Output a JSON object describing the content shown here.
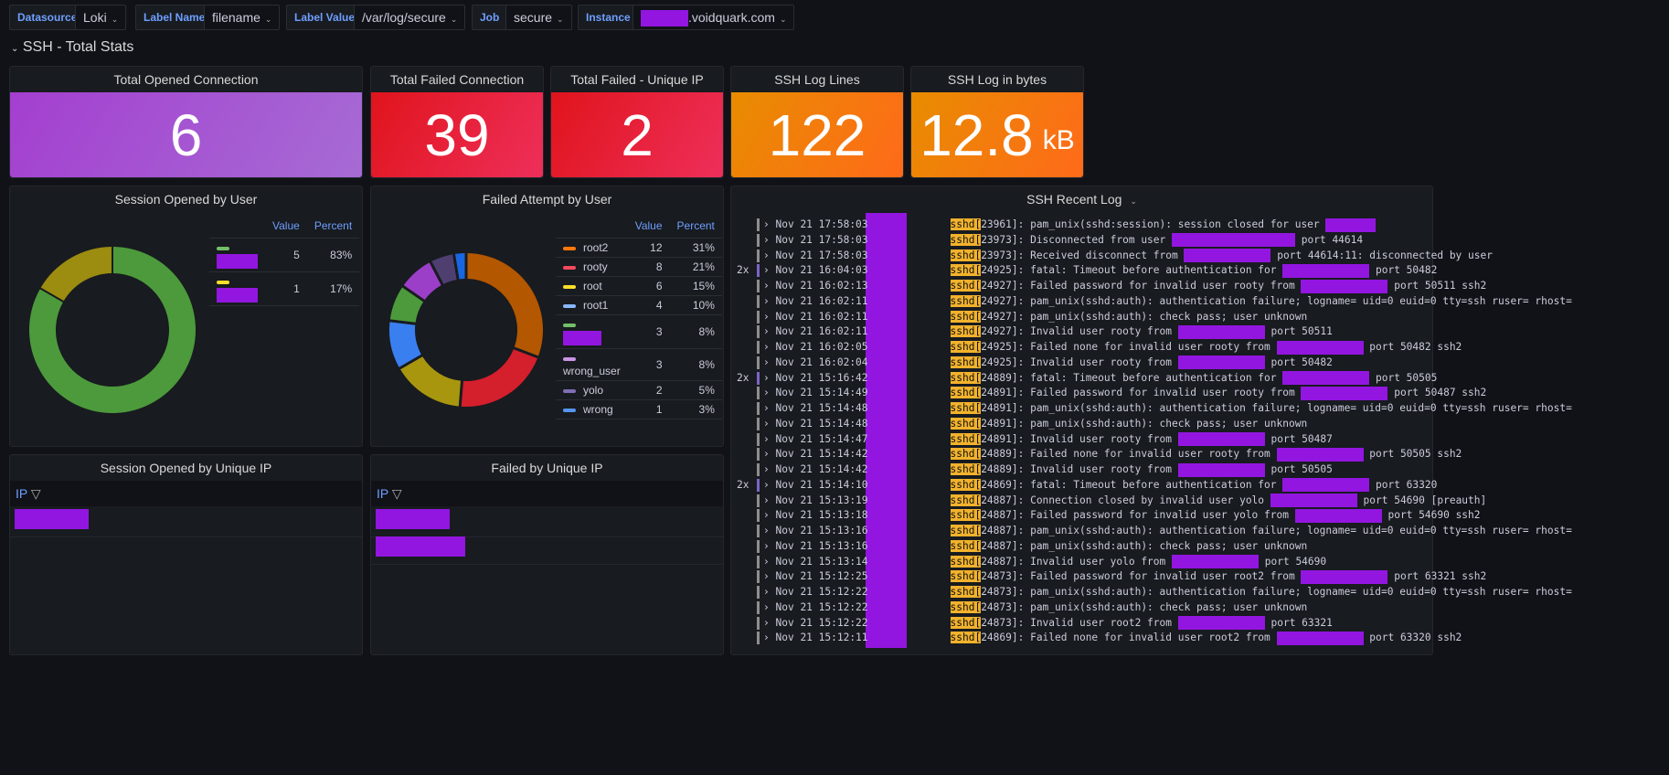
{
  "variables": [
    {
      "label": "Datasource",
      "value": "Loki"
    },
    {
      "label": "Label Name",
      "value": "filename"
    },
    {
      "label": "Label Value",
      "value": "/var/log/secure"
    },
    {
      "label": "Job",
      "value": "secure"
    },
    {
      "label": "Instance",
      "value": ".voidquark.com"
    }
  ],
  "row_title": "SSH - Total Stats",
  "stats": [
    {
      "title": "Total Opened Connection",
      "value": "6",
      "unit": "",
      "color": "#a352cc"
    },
    {
      "title": "Total Failed Connection",
      "value": "39",
      "unit": "",
      "color": "#e02f44"
    },
    {
      "title": "Total Failed - Unique IP",
      "value": "2",
      "unit": "",
      "color": "#e02f44"
    },
    {
      "title": "SSH Log Lines",
      "value": "122",
      "unit": "",
      "color": "#ff780a"
    },
    {
      "title": "SSH Log in bytes",
      "value": "12.8",
      "unit": "kB",
      "color": "#ff780a"
    }
  ],
  "session_by_user": {
    "title": "Session Opened by User",
    "value_header": "Value",
    "percent_header": "Percent",
    "items": [
      {
        "name": "",
        "redacted": true,
        "value": 5,
        "percent": "83%",
        "color": "#73bf69",
        "arc": "#4c9a3c"
      },
      {
        "name": "",
        "redacted": true,
        "value": 1,
        "percent": "17%",
        "color": "#fade2a",
        "arc": "#9c8c10"
      }
    ]
  },
  "failed_by_user": {
    "title": "Failed Attempt by User",
    "value_header": "Value",
    "percent_header": "Percent",
    "items": [
      {
        "name": "root2",
        "value": 12,
        "percent": "31%",
        "color": "#ff780a",
        "arc": "#b35700"
      },
      {
        "name": "rooty",
        "value": 8,
        "percent": "21%",
        "color": "#f2495c",
        "arc": "#d41f2c"
      },
      {
        "name": "root",
        "value": 6,
        "percent": "15%",
        "color": "#fade2a",
        "arc": "#a8960e"
      },
      {
        "name": "root1",
        "value": 4,
        "percent": "10%",
        "color": "#8ab8ff",
        "arc": "#3a7ff0"
      },
      {
        "name": "",
        "redacted": true,
        "value": 3,
        "percent": "8%",
        "color": "#73bf69",
        "arc": "#4c9a3c"
      },
      {
        "name": "wrong_user",
        "value": 3,
        "percent": "8%",
        "color": "#ca95e5",
        "arc": "#9b3fc8"
      },
      {
        "name": "yolo",
        "value": 2,
        "percent": "5%",
        "color": "#806eb7",
        "arc": "#4e3f70"
      },
      {
        "name": "wrong",
        "value": 1,
        "percent": "3%",
        "color": "#5794f2",
        "arc": "#1a66e0"
      }
    ]
  },
  "session_by_ip": {
    "title": "Session Opened by Unique IP",
    "column": "IP",
    "rows": 1
  },
  "failed_by_ip": {
    "title": "Failed by Unique IP",
    "column": "IP",
    "rows": 2
  },
  "log": {
    "title": "SSH Recent Log",
    "app": "sshd[",
    "lines": [
      {
        "dup": "",
        "ts": "Nov 21 17:58:03",
        "pid": "23961",
        "msg": "]: pam_unix(sshd:session): session closed for user",
        "after": ""
      },
      {
        "dup": "",
        "ts": "Nov 21 17:58:03",
        "pid": "23973",
        "msg": "]: Disconnected from user",
        "after": "port 44614"
      },
      {
        "dup": "",
        "ts": "Nov 21 17:58:03",
        "pid": "23973",
        "msg": "]: Received disconnect from",
        "after": "port 44614:11: disconnected by user"
      },
      {
        "dup": "2x",
        "ts": "Nov 21 16:04:03",
        "pid": "24925",
        "msg": "]: fatal: Timeout before authentication for",
        "after": "port 50482"
      },
      {
        "dup": "",
        "ts": "Nov 21 16:02:13",
        "pid": "24927",
        "msg": "]: Failed password for invalid user rooty from",
        "after": "port 50511 ssh2"
      },
      {
        "dup": "",
        "ts": "Nov 21 16:02:11",
        "pid": "24927",
        "msg": "]: pam_unix(sshd:auth): authentication failure; logname= uid=0 euid=0 tty=ssh ruser= rhost=",
        "after": null
      },
      {
        "dup": "",
        "ts": "Nov 21 16:02:11",
        "pid": "24927",
        "msg": "]: pam_unix(sshd:auth): check pass; user unknown",
        "after": null
      },
      {
        "dup": "",
        "ts": "Nov 21 16:02:11",
        "pid": "24927",
        "msg": "]: Invalid user rooty from",
        "after": "port 50511"
      },
      {
        "dup": "",
        "ts": "Nov 21 16:02:05",
        "pid": "24925",
        "msg": "]: Failed none for invalid user rooty from",
        "after": "port 50482 ssh2"
      },
      {
        "dup": "",
        "ts": "Nov 21 16:02:04",
        "pid": "24925",
        "msg": "]: Invalid user rooty from",
        "after": "port 50482"
      },
      {
        "dup": "2x",
        "ts": "Nov 21 15:16:42",
        "pid": "24889",
        "msg": "]: fatal: Timeout before authentication for",
        "after": "port 50505"
      },
      {
        "dup": "",
        "ts": "Nov 21 15:14:49",
        "pid": "24891",
        "msg": "]: Failed password for invalid user rooty from",
        "after": "port 50487 ssh2"
      },
      {
        "dup": "",
        "ts": "Nov 21 15:14:48",
        "pid": "24891",
        "msg": "]: pam_unix(sshd:auth): authentication failure; logname= uid=0 euid=0 tty=ssh ruser= rhost=",
        "after": null
      },
      {
        "dup": "",
        "ts": "Nov 21 15:14:48",
        "pid": "24891",
        "msg": "]: pam_unix(sshd:auth): check pass; user unknown",
        "after": null
      },
      {
        "dup": "",
        "ts": "Nov 21 15:14:47",
        "pid": "24891",
        "msg": "]: Invalid user rooty from",
        "after": "port 50487"
      },
      {
        "dup": "",
        "ts": "Nov 21 15:14:42",
        "pid": "24889",
        "msg": "]: Failed none for invalid user rooty from",
        "after": "port 50505 ssh2"
      },
      {
        "dup": "",
        "ts": "Nov 21 15:14:42",
        "pid": "24889",
        "msg": "]: Invalid user rooty from",
        "after": "port 50505"
      },
      {
        "dup": "2x",
        "ts": "Nov 21 15:14:10",
        "pid": "24869",
        "msg": "]: fatal: Timeout before authentication for",
        "after": "port 63320"
      },
      {
        "dup": "",
        "ts": "Nov 21 15:13:19",
        "pid": "24887",
        "msg": "]: Connection closed by invalid user yolo",
        "after": "port 54690 [preauth]"
      },
      {
        "dup": "",
        "ts": "Nov 21 15:13:18",
        "pid": "24887",
        "msg": "]: Failed password for invalid user yolo from",
        "after": "port 54690 ssh2"
      },
      {
        "dup": "",
        "ts": "Nov 21 15:13:16",
        "pid": "24887",
        "msg": "]: pam_unix(sshd:auth): authentication failure; logname= uid=0 euid=0 tty=ssh ruser= rhost=",
        "after": null
      },
      {
        "dup": "",
        "ts": "Nov 21 15:13:16",
        "pid": "24887",
        "msg": "]: pam_unix(sshd:auth): check pass; user unknown",
        "after": null
      },
      {
        "dup": "",
        "ts": "Nov 21 15:13:14",
        "pid": "24887",
        "msg": "]: Invalid user yolo from",
        "after": "port 54690"
      },
      {
        "dup": "",
        "ts": "Nov 21 15:12:25",
        "pid": "24873",
        "msg": "]: Failed password for invalid user root2 from",
        "after": "port 63321 ssh2"
      },
      {
        "dup": "",
        "ts": "Nov 21 15:12:22",
        "pid": "24873",
        "msg": "]: pam_unix(sshd:auth): authentication failure; logname= uid=0 euid=0 tty=ssh ruser= rhost=",
        "after": null
      },
      {
        "dup": "",
        "ts": "Nov 21 15:12:22",
        "pid": "24873",
        "msg": "]: pam_unix(sshd:auth): check pass; user unknown",
        "after": null
      },
      {
        "dup": "",
        "ts": "Nov 21 15:12:22",
        "pid": "24873",
        "msg": "]: Invalid user root2 from",
        "after": "port 63321"
      },
      {
        "dup": "",
        "ts": "Nov 21 15:12:11",
        "pid": "24869",
        "msg": "]: Failed none for invalid user root2 from",
        "after": "port 63320 ssh2"
      }
    ]
  }
}
